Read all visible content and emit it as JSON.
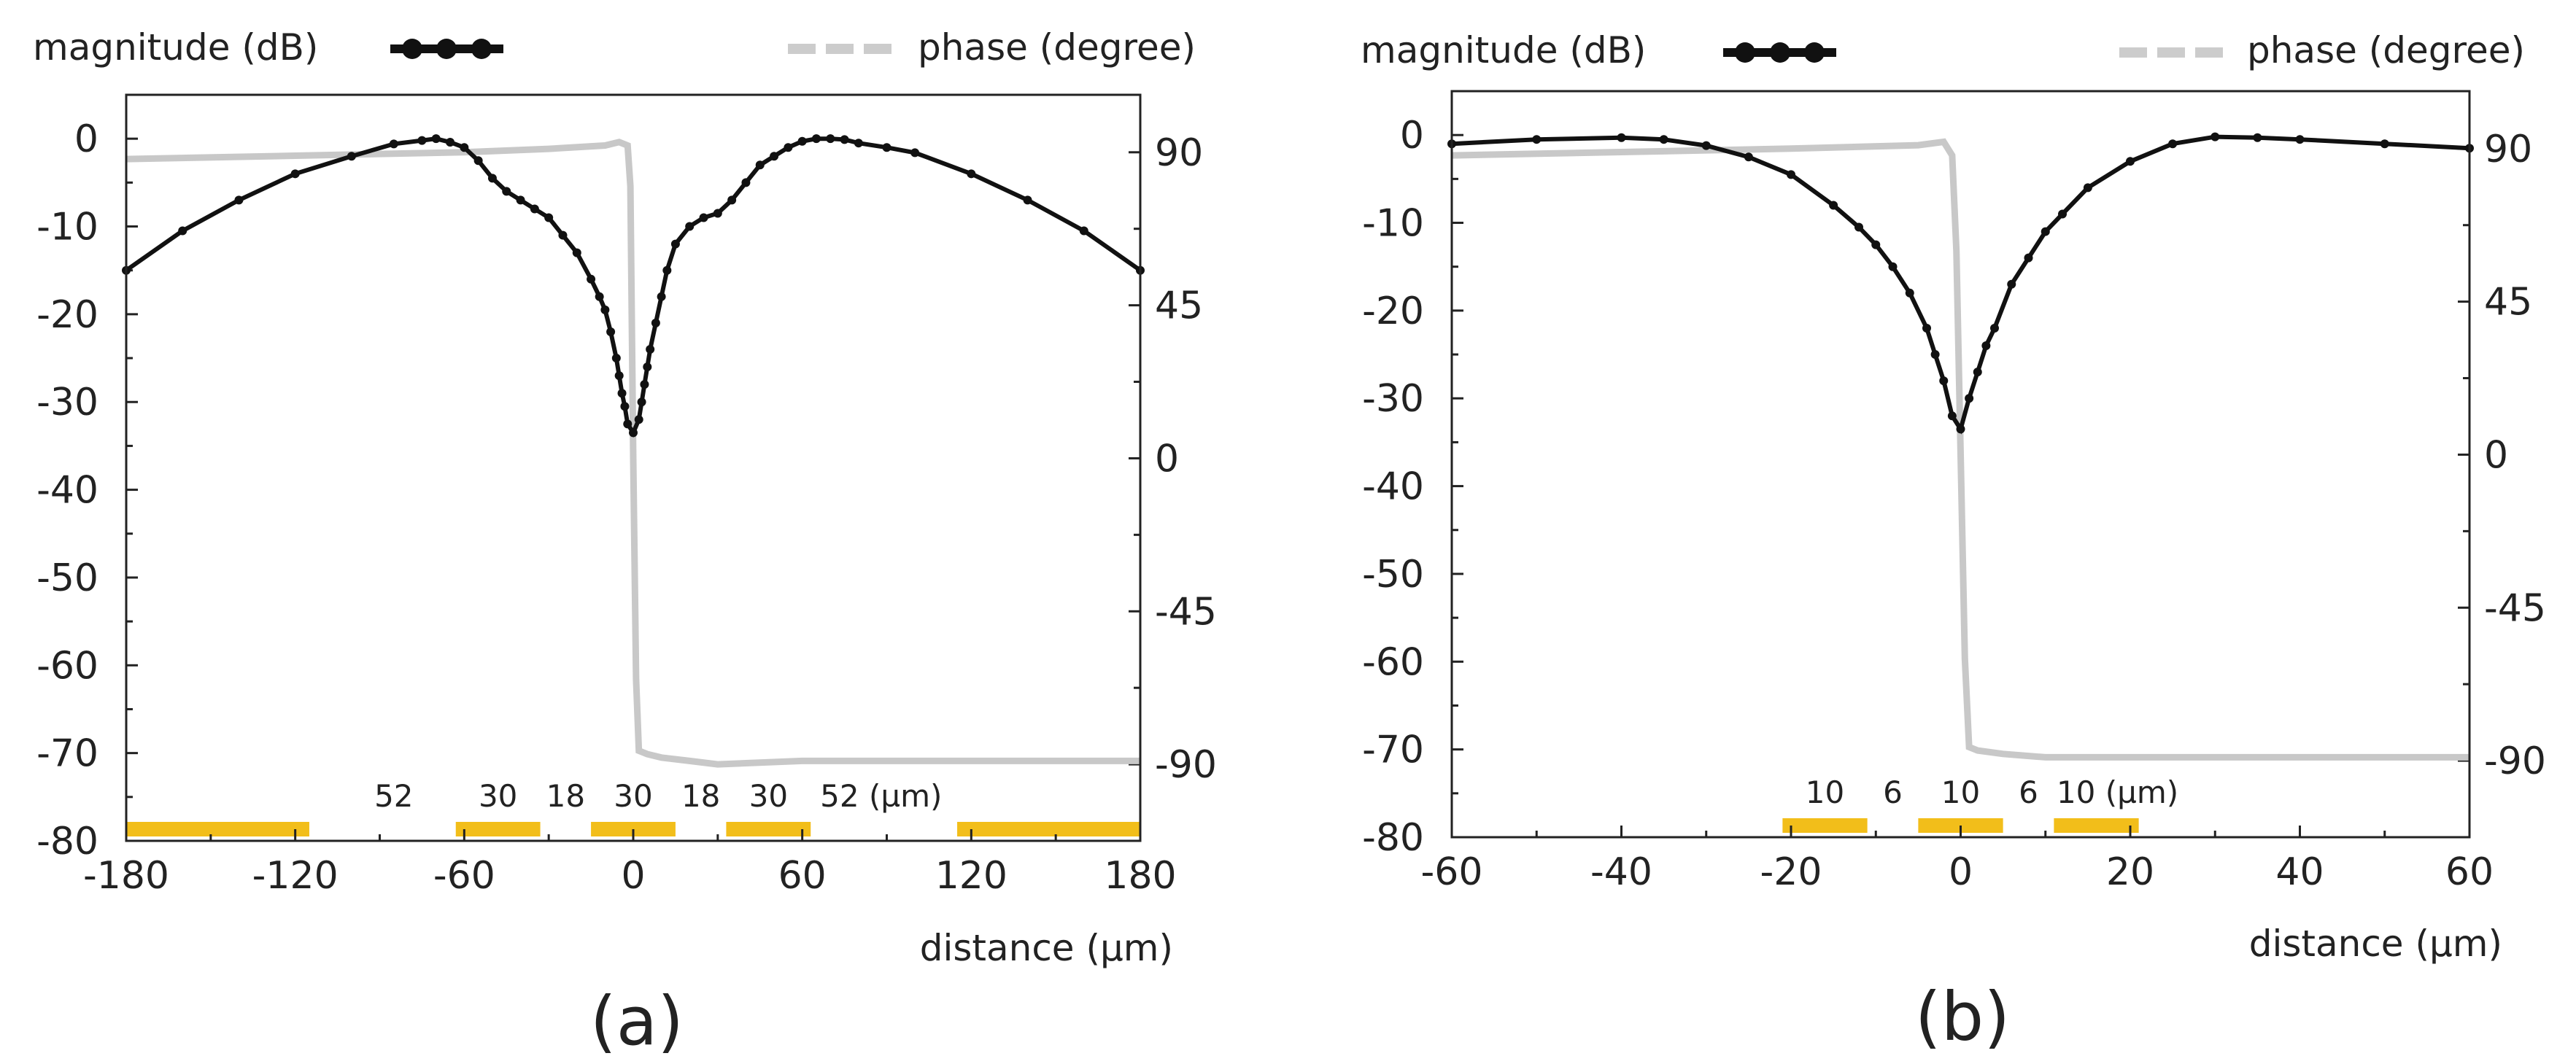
{
  "chart_data": [
    {
      "type": "line",
      "panel_label": "(a)",
      "legend": {
        "magnitude": "magnitude (dB)",
        "phase": "phase (degree)"
      },
      "xlabel": "distance (µm)",
      "xlim": [
        -180,
        180
      ],
      "xticks": [
        -180,
        -120,
        -60,
        0,
        60,
        120,
        180
      ],
      "ylabel_left": "magnitude (dB)",
      "ylim_left": [
        -80,
        5
      ],
      "yticks_left": [
        0,
        -10,
        -20,
        -30,
        -40,
        -50,
        -60,
        -70,
        -80
      ],
      "ylabel_right": "phase (degree)",
      "ylim_right": [
        -112.5,
        106.9
      ],
      "yticks_right": [
        90,
        45,
        0,
        -45,
        -90
      ],
      "series": [
        {
          "name": "magnitude (dB)",
          "axis": "left",
          "color": "#111111",
          "x": [
            -180,
            -160,
            -140,
            -120,
            -100,
            -85,
            -75,
            -70,
            -65,
            -60,
            -55,
            -50,
            -45,
            -40,
            -35,
            -30,
            -25,
            -20,
            -15,
            -12,
            -10,
            -8,
            -6,
            -5,
            -4,
            -3,
            -2,
            0,
            2,
            3,
            4,
            5,
            6,
            8,
            10,
            12,
            15,
            20,
            25,
            30,
            35,
            40,
            45,
            50,
            55,
            60,
            65,
            70,
            75,
            80,
            90,
            100,
            120,
            140,
            160,
            180
          ],
          "y": [
            -15,
            -10.5,
            -7,
            -4,
            -2,
            -0.6,
            -0.2,
            0,
            -0.4,
            -1,
            -2.5,
            -4.5,
            -6,
            -7,
            -8,
            -9,
            -11,
            -13,
            -16,
            -18,
            -19.5,
            -22,
            -25,
            -27,
            -29,
            -30.5,
            -32.5,
            -33.5,
            -32,
            -30,
            -28,
            -26,
            -24,
            -21,
            -18,
            -15,
            -12,
            -10,
            -9,
            -8.5,
            -7,
            -5,
            -3,
            -2,
            -1,
            -0.3,
            0,
            0,
            -0.1,
            -0.5,
            -1,
            -1.6,
            -4,
            -7,
            -10.5,
            -15
          ]
        },
        {
          "name": "phase (degree)",
          "axis": "right",
          "color": "#c8c8c8",
          "x": [
            -180,
            -120,
            -60,
            -30,
            -10,
            -5,
            -2,
            -1,
            0,
            1,
            2,
            5,
            10,
            20,
            30,
            60,
            120,
            180
          ],
          "y": [
            88,
            89,
            90,
            91,
            92,
            93,
            92,
            80,
            0,
            -65,
            -86,
            -87,
            -88,
            -89,
            -90,
            -89,
            -89,
            -89
          ]
        }
      ],
      "electrodes": {
        "ranges": [
          [
            -180,
            -115
          ],
          [
            -63,
            -33
          ],
          [
            -15,
            15
          ],
          [
            33,
            63
          ],
          [
            115,
            180
          ]
        ],
        "labels": [
          {
            "text": "52",
            "x": -85
          },
          {
            "text": "30",
            "x": -48
          },
          {
            "text": "18",
            "x": -24
          },
          {
            "text": "30",
            "x": 0
          },
          {
            "text": "18",
            "x": 24
          },
          {
            "text": "30",
            "x": 48
          },
          {
            "text": "52 (µm)",
            "x": 88
          }
        ]
      }
    },
    {
      "type": "line",
      "panel_label": "(b)",
      "legend": {
        "magnitude": "magnitude (dB)",
        "phase": "phase (degree)"
      },
      "xlabel": "distance (µm)",
      "xlim": [
        -60,
        60
      ],
      "xticks": [
        -60,
        -40,
        -20,
        0,
        20,
        40,
        60
      ],
      "ylabel_left": "magnitude (dB)",
      "ylim_left": [
        -80,
        5
      ],
      "yticks_left": [
        0,
        -10,
        -20,
        -30,
        -40,
        -50,
        -60,
        -70,
        -80
      ],
      "ylabel_right": "phase (degree)",
      "ylim_right": [
        -112.5,
        106.9
      ],
      "yticks_right": [
        90,
        45,
        0,
        -45,
        -90
      ],
      "series": [
        {
          "name": "magnitude (dB)",
          "axis": "right_placeholder_none",
          "color": "#111111",
          "x": [
            -60,
            -50,
            -40,
            -35,
            -30,
            -25,
            -20,
            -15,
            -12,
            -10,
            -8,
            -6,
            -4,
            -3,
            -2,
            -1,
            0,
            1,
            2,
            3,
            4,
            6,
            8,
            10,
            12,
            15,
            20,
            25,
            30,
            35,
            40,
            50,
            60
          ],
          "y": [
            -1,
            -0.5,
            -0.3,
            -0.5,
            -1.2,
            -2.5,
            -4.5,
            -8,
            -10.5,
            -12.5,
            -15,
            -18,
            -22,
            -25,
            -28,
            -32,
            -33.5,
            -30,
            -27,
            -24,
            -22,
            -17,
            -14,
            -11,
            -9,
            -6,
            -3,
            -1,
            -0.2,
            -0.3,
            -0.5,
            -1,
            -1.5
          ]
        },
        {
          "name": "phase (degree)",
          "axis": "right",
          "color": "#c8c8c8",
          "x": [
            -60,
            -40,
            -20,
            -5,
            -2,
            -1,
            -0.5,
            0,
            0.5,
            1,
            2,
            5,
            10,
            20,
            40,
            60
          ],
          "y": [
            88,
            89,
            90,
            91,
            92,
            88,
            60,
            0,
            -60,
            -86,
            -87,
            -88,
            -89,
            -89,
            -89,
            -89
          ]
        }
      ],
      "electrodes": {
        "ranges": [
          [
            -21,
            -11
          ],
          [
            -5,
            5
          ],
          [
            11,
            21
          ]
        ],
        "labels": [
          {
            "text": "10",
            "x": -16
          },
          {
            "text": "6",
            "x": -8
          },
          {
            "text": "10",
            "x": 0
          },
          {
            "text": "6",
            "x": 8
          },
          {
            "text": "10 (µm)",
            "x": 18.5
          }
        ]
      }
    }
  ]
}
